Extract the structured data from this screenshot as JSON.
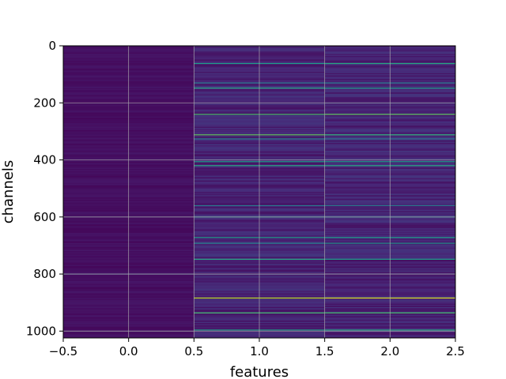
{
  "chart_data": {
    "type": "heatmap",
    "title": "",
    "xlabel": "features",
    "ylabel": "channels",
    "xlim": [
      -0.5,
      2.5
    ],
    "ylim": [
      1024,
      0
    ],
    "y_inverted": true,
    "grid": true,
    "colormap": "viridis",
    "background_color": "#440154",
    "xticks": [
      -0.5,
      0.0,
      0.5,
      1.0,
      1.5,
      2.0,
      2.5
    ],
    "xtick_labels": [
      "−0.5",
      "0.0",
      "0.5",
      "1.0",
      "1.5",
      "2.0",
      "2.5"
    ],
    "yticks": [
      0,
      200,
      400,
      600,
      800,
      1000
    ],
    "ytick_labels": [
      "0",
      "200",
      "400",
      "600",
      "800",
      "1000"
    ],
    "columns": [
      {
        "feature": 0,
        "base_value": 0.04,
        "rows": [
          {
            "channel": 800,
            "value": 0.2
          }
        ]
      },
      {
        "feature": 1,
        "base_value": 0.1,
        "rows": [
          {
            "channel": 62,
            "value": 0.55
          },
          {
            "channel": 130,
            "value": 0.4
          },
          {
            "channel": 148,
            "value": 0.6
          },
          {
            "channel": 240,
            "value": 0.7
          },
          {
            "channel": 312,
            "value": 0.75
          },
          {
            "channel": 326,
            "value": 0.4
          },
          {
            "channel": 406,
            "value": 0.55
          },
          {
            "channel": 420,
            "value": 0.6
          },
          {
            "channel": 560,
            "value": 0.4
          },
          {
            "channel": 600,
            "value": 0.45
          },
          {
            "channel": 672,
            "value": 0.55
          },
          {
            "channel": 692,
            "value": 0.45
          },
          {
            "channel": 748,
            "value": 0.6
          },
          {
            "channel": 884,
            "value": 0.9
          },
          {
            "channel": 936,
            "value": 0.7
          },
          {
            "channel": 996,
            "value": 0.55
          }
        ]
      },
      {
        "feature": 2,
        "base_value": 0.1,
        "rows": [
          {
            "channel": 62,
            "value": 0.6
          },
          {
            "channel": 130,
            "value": 0.4
          },
          {
            "channel": 148,
            "value": 0.55
          },
          {
            "channel": 240,
            "value": 0.75
          },
          {
            "channel": 312,
            "value": 0.65
          },
          {
            "channel": 326,
            "value": 0.35
          },
          {
            "channel": 406,
            "value": 0.55
          },
          {
            "channel": 420,
            "value": 0.6
          },
          {
            "channel": 560,
            "value": 0.4
          },
          {
            "channel": 600,
            "value": 0.4
          },
          {
            "channel": 672,
            "value": 0.55
          },
          {
            "channel": 692,
            "value": 0.5
          },
          {
            "channel": 748,
            "value": 0.55
          },
          {
            "channel": 884,
            "value": 0.95
          },
          {
            "channel": 936,
            "value": 0.7
          },
          {
            "channel": 996,
            "value": 0.6
          }
        ]
      }
    ]
  }
}
